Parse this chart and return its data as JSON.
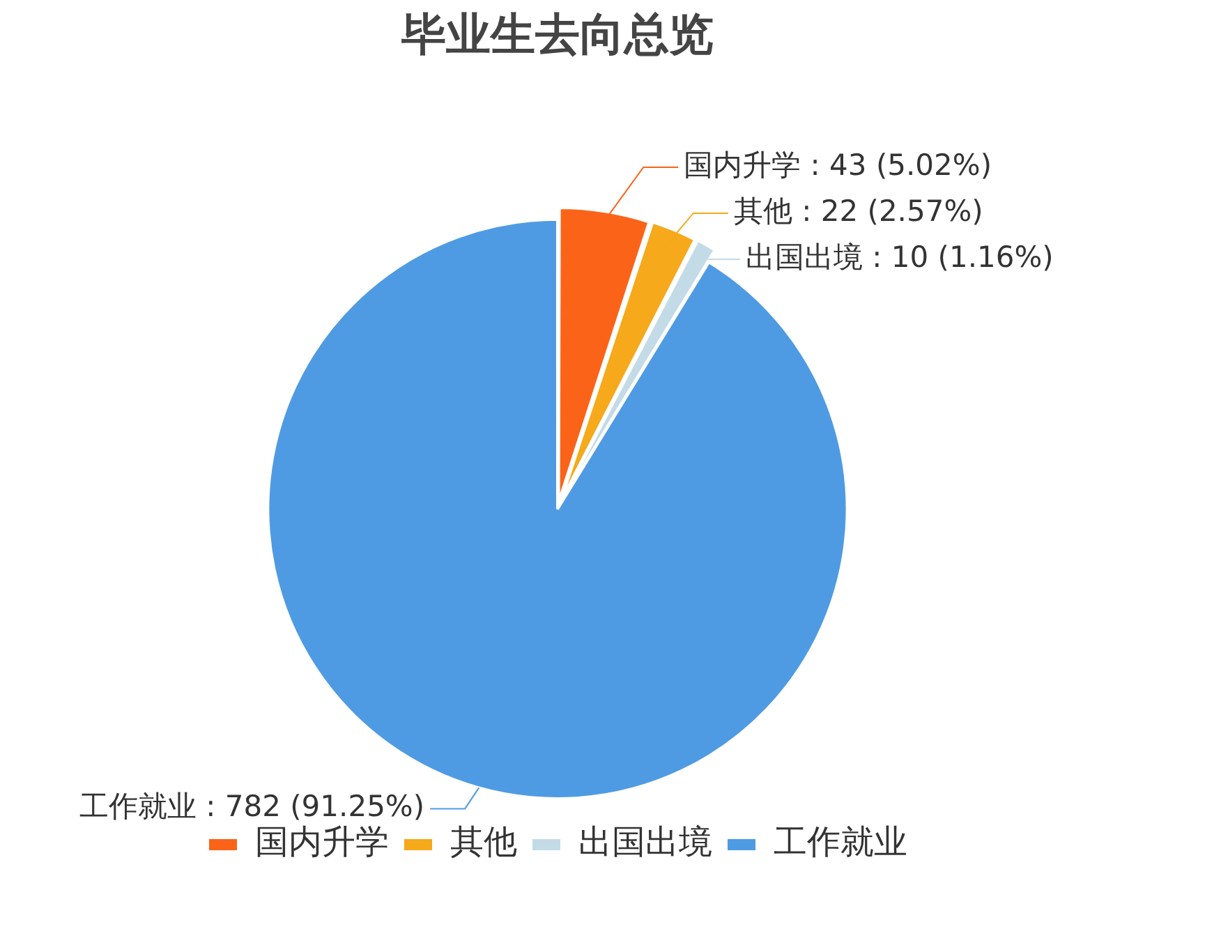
{
  "chart_data": {
    "type": "pie",
    "title": "毕业生去向总览",
    "categories": [
      "国内升学",
      "其他",
      "出国出境",
      "工作就业"
    ],
    "values": [
      43,
      22,
      10,
      782
    ],
    "colors": [
      "#fb6418",
      "#f5a91b",
      "#c3dbe6",
      "#4f9be3"
    ],
    "value_labels": [
      "国内升学 : 43 (5.02%)",
      "其他 : 22 (2.57%)",
      "出国出境 : 10 (1.16%)",
      "工作就业 : 782 (91.25%)"
    ],
    "legend": "bottom"
  }
}
